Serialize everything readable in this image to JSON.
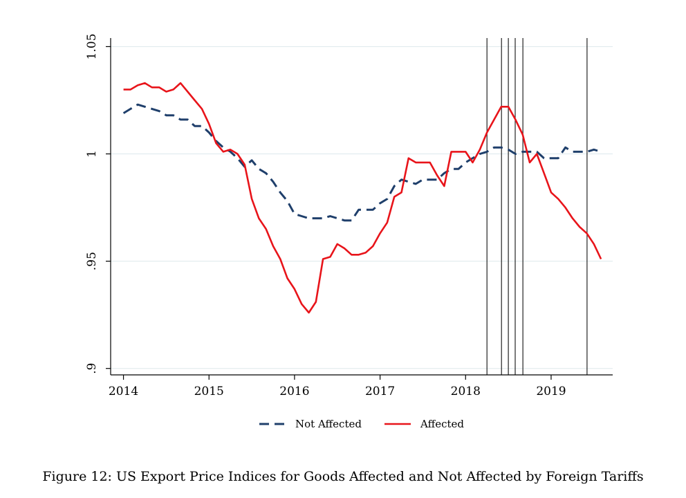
{
  "caption": "Figure 12: US Export Price Indices for Goods Affected and Not Affected by Foreign Tariffs",
  "chart_data": {
    "type": "line",
    "title": "",
    "xlabel": "",
    "ylabel": "",
    "xlim": [
      2013.85,
      2019.72
    ],
    "ylim": [
      0.897,
      1.054
    ],
    "x_ticks": [
      2014,
      2015,
      2016,
      2017,
      2018,
      2019
    ],
    "x_tick_labels": [
      "2014",
      "2015",
      "2016",
      "2017",
      "2018",
      "2019"
    ],
    "y_ticks": [
      0.9,
      0.95,
      1.0,
      1.05
    ],
    "y_tick_labels": [
      ".9",
      ".95",
      "1",
      "1.05"
    ],
    "grid": "horizontal",
    "legend_position": "bottom",
    "vertical_lines_x": [
      2018.25,
      2018.42,
      2018.5,
      2018.58,
      2018.67,
      2019.42
    ],
    "series": [
      {
        "name": "Not Affected",
        "color": "#1f3f6b",
        "style": "dashed",
        "points": [
          [
            2014.0,
            1.019
          ],
          [
            2014.083,
            1.021
          ],
          [
            2014.167,
            1.023
          ],
          [
            2014.25,
            1.022
          ],
          [
            2014.333,
            1.021
          ],
          [
            2014.417,
            1.02
          ],
          [
            2014.5,
            1.018
          ],
          [
            2014.583,
            1.018
          ],
          [
            2014.667,
            1.016
          ],
          [
            2014.75,
            1.016
          ],
          [
            2014.833,
            1.013
          ],
          [
            2014.917,
            1.013
          ],
          [
            2015.0,
            1.01
          ],
          [
            2015.083,
            1.006
          ],
          [
            2015.167,
            1.003
          ],
          [
            2015.25,
            1.001
          ],
          [
            2015.333,
            0.998
          ],
          [
            2015.417,
            0.994
          ],
          [
            2015.5,
            0.997
          ],
          [
            2015.583,
            0.993
          ],
          [
            2015.667,
            0.991
          ],
          [
            2015.75,
            0.987
          ],
          [
            2015.833,
            0.982
          ],
          [
            2015.917,
            0.978
          ],
          [
            2016.0,
            0.972
          ],
          [
            2016.083,
            0.971
          ],
          [
            2016.167,
            0.97
          ],
          [
            2016.25,
            0.97
          ],
          [
            2016.333,
            0.97
          ],
          [
            2016.417,
            0.971
          ],
          [
            2016.5,
            0.97
          ],
          [
            2016.583,
            0.969
          ],
          [
            2016.667,
            0.969
          ],
          [
            2016.75,
            0.974
          ],
          [
            2016.833,
            0.974
          ],
          [
            2016.917,
            0.974
          ],
          [
            2017.0,
            0.977
          ],
          [
            2017.083,
            0.979
          ],
          [
            2017.167,
            0.985
          ],
          [
            2017.25,
            0.988
          ],
          [
            2017.333,
            0.987
          ],
          [
            2017.417,
            0.986
          ],
          [
            2017.5,
            0.988
          ],
          [
            2017.583,
            0.988
          ],
          [
            2017.667,
            0.988
          ],
          [
            2017.75,
            0.991
          ],
          [
            2017.833,
            0.993
          ],
          [
            2017.917,
            0.993
          ],
          [
            2018.0,
            0.996
          ],
          [
            2018.083,
            0.998
          ],
          [
            2018.167,
            1.0
          ],
          [
            2018.25,
            1.001
          ],
          [
            2018.333,
            1.003
          ],
          [
            2018.417,
            1.003
          ],
          [
            2018.5,
            1.002
          ],
          [
            2018.583,
            1.0
          ],
          [
            2018.667,
            1.001
          ],
          [
            2018.75,
            1.001
          ],
          [
            2018.833,
            1.001
          ],
          [
            2018.917,
            0.998
          ],
          [
            2019.0,
            0.998
          ],
          [
            2019.083,
            0.998
          ],
          [
            2019.167,
            1.003
          ],
          [
            2019.25,
            1.001
          ],
          [
            2019.333,
            1.001
          ],
          [
            2019.417,
            1.001
          ],
          [
            2019.5,
            1.002
          ],
          [
            2019.583,
            1.001
          ]
        ]
      },
      {
        "name": "Affected",
        "color": "#e8141a",
        "style": "solid",
        "points": [
          [
            2014.0,
            1.03
          ],
          [
            2014.083,
            1.03
          ],
          [
            2014.167,
            1.032
          ],
          [
            2014.25,
            1.033
          ],
          [
            2014.333,
            1.031
          ],
          [
            2014.417,
            1.031
          ],
          [
            2014.5,
            1.029
          ],
          [
            2014.583,
            1.03
          ],
          [
            2014.667,
            1.033
          ],
          [
            2014.75,
            1.029
          ],
          [
            2014.833,
            1.025
          ],
          [
            2014.917,
            1.021
          ],
          [
            2015.0,
            1.014
          ],
          [
            2015.083,
            1.005
          ],
          [
            2015.167,
            1.001
          ],
          [
            2015.25,
            1.002
          ],
          [
            2015.333,
            1.0
          ],
          [
            2015.417,
            0.995
          ],
          [
            2015.5,
            0.979
          ],
          [
            2015.583,
            0.97
          ],
          [
            2015.667,
            0.965
          ],
          [
            2015.75,
            0.957
          ],
          [
            2015.833,
            0.951
          ],
          [
            2015.917,
            0.942
          ],
          [
            2016.0,
            0.937
          ],
          [
            2016.083,
            0.93
          ],
          [
            2016.167,
            0.926
          ],
          [
            2016.25,
            0.931
          ],
          [
            2016.333,
            0.951
          ],
          [
            2016.417,
            0.952
          ],
          [
            2016.5,
            0.958
          ],
          [
            2016.583,
            0.956
          ],
          [
            2016.667,
            0.953
          ],
          [
            2016.75,
            0.953
          ],
          [
            2016.833,
            0.954
          ],
          [
            2016.917,
            0.957
          ],
          [
            2017.0,
            0.963
          ],
          [
            2017.083,
            0.968
          ],
          [
            2017.167,
            0.98
          ],
          [
            2017.25,
            0.982
          ],
          [
            2017.333,
            0.998
          ],
          [
            2017.417,
            0.996
          ],
          [
            2017.5,
            0.996
          ],
          [
            2017.583,
            0.996
          ],
          [
            2017.667,
            0.99
          ],
          [
            2017.75,
            0.985
          ],
          [
            2017.833,
            1.001
          ],
          [
            2017.917,
            1.001
          ],
          [
            2018.0,
            1.001
          ],
          [
            2018.083,
            0.996
          ],
          [
            2018.167,
            1.002
          ],
          [
            2018.25,
            1.01
          ],
          [
            2018.333,
            1.016
          ],
          [
            2018.417,
            1.022
          ],
          [
            2018.5,
            1.022
          ],
          [
            2018.583,
            1.016
          ],
          [
            2018.667,
            1.009
          ],
          [
            2018.75,
            0.996
          ],
          [
            2018.833,
            1.0
          ],
          [
            2018.917,
            0.991
          ],
          [
            2019.0,
            0.982
          ],
          [
            2019.083,
            0.979
          ],
          [
            2019.167,
            0.975
          ],
          [
            2019.25,
            0.97
          ],
          [
            2019.333,
            0.966
          ],
          [
            2019.417,
            0.963
          ],
          [
            2019.5,
            0.958
          ],
          [
            2019.583,
            0.951
          ]
        ]
      }
    ]
  }
}
